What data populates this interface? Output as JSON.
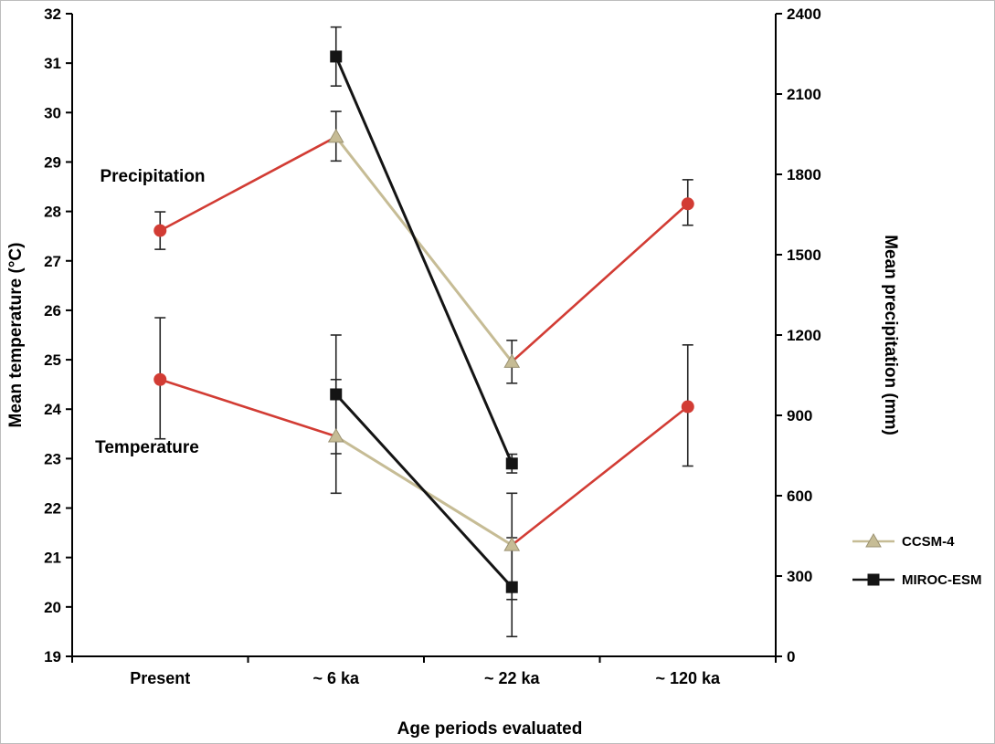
{
  "chart_data": {
    "type": "line",
    "xlabel": "Age periods evaluated",
    "categories": [
      "Present",
      "~ 6 ka",
      "~ 22 ka",
      "~ 120 ka"
    ],
    "left_axis": {
      "label": "Mean temperature (°C)",
      "min": 19,
      "max": 32,
      "ticks": [
        19,
        20,
        21,
        22,
        23,
        24,
        25,
        26,
        27,
        28,
        29,
        30,
        31,
        32
      ]
    },
    "right_axis": {
      "label": "Mean precipitation (mm)",
      "min": 0,
      "max": 2400,
      "ticks": [
        0,
        300,
        600,
        900,
        1200,
        1500,
        1800,
        2100,
        2400
      ]
    },
    "annotations": {
      "precipitation": "Precipitation",
      "temperature": "Temperature"
    },
    "legend": [
      {
        "label": "CCSM-4",
        "marker": "triangle",
        "color_key": "ccsm4"
      },
      {
        "label": "MIROC-ESM",
        "marker": "square",
        "color_key": "miroc"
      }
    ],
    "colors": {
      "observed": "#d23c34",
      "ccsm4": "#c6bc95",
      "ccsm4_edge": "#9a9171",
      "miroc": "#141414",
      "error_bar": "#262626",
      "axis": "#000000"
    },
    "series": [
      {
        "id": "precipitation-observed",
        "group": "Precipitation",
        "axis": "right",
        "marker": "circle",
        "color_key": "observed",
        "points": [
          {
            "ci": 0,
            "v": 1590,
            "eu": 70,
            "el": 70
          },
          {
            "ci": 3,
            "v": 1690,
            "eu": 90,
            "el": 80
          }
        ],
        "lines": [
          [
            {
              "ci": 0,
              "v": 1590
            },
            {
              "ci": 1,
              "v": 1940
            }
          ],
          [
            {
              "ci": 2,
              "v": 1100
            },
            {
              "ci": 3,
              "v": 1690
            }
          ]
        ]
      },
      {
        "id": "precipitation-ccsm4",
        "group": "Precipitation",
        "axis": "right",
        "marker": "triangle",
        "color_key": "ccsm4",
        "points": [
          {
            "ci": 1,
            "v": 1940,
            "eu": 95,
            "el": 90
          },
          {
            "ci": 2,
            "v": 1100,
            "eu": 80,
            "el": 80
          }
        ],
        "lines": [
          [
            {
              "ci": 1,
              "v": 1940
            },
            {
              "ci": 2,
              "v": 1100
            }
          ]
        ]
      },
      {
        "id": "precipitation-miroc-esm",
        "group": "Precipitation",
        "axis": "right",
        "marker": "square",
        "color_key": "miroc",
        "points": [
          {
            "ci": 1,
            "v": 2240,
            "eu": 110,
            "el": 110
          },
          {
            "ci": 2,
            "v": 720,
            "eu": 35,
            "el": 35
          }
        ],
        "lines": [
          [
            {
              "ci": 1,
              "v": 2240
            },
            {
              "ci": 2,
              "v": 720
            }
          ]
        ]
      },
      {
        "id": "temperature-observed",
        "group": "Temperature",
        "axis": "left",
        "marker": "circle",
        "color_key": "observed",
        "points": [
          {
            "ci": 0,
            "v": 24.6,
            "eu": 1.25,
            "el": 1.2
          },
          {
            "ci": 3,
            "v": 24.05,
            "eu": 1.25,
            "el": 1.2
          }
        ],
        "lines": [
          [
            {
              "ci": 0,
              "v": 24.6
            },
            {
              "ci": 1,
              "v": 23.45
            }
          ],
          [
            {
              "ci": 2,
              "v": 21.25
            },
            {
              "ci": 3,
              "v": 24.05
            }
          ]
        ]
      },
      {
        "id": "temperature-ccsm4",
        "group": "Temperature",
        "axis": "left",
        "marker": "triangle",
        "color_key": "ccsm4",
        "points": [
          {
            "ci": 1,
            "v": 23.45,
            "eu": 1.15,
            "el": 1.15
          },
          {
            "ci": 2,
            "v": 21.25,
            "eu": 1.05,
            "el": 1.1
          }
        ],
        "lines": [
          [
            {
              "ci": 1,
              "v": 23.45
            },
            {
              "ci": 2,
              "v": 21.25
            }
          ]
        ]
      },
      {
        "id": "temperature-miroc-esm",
        "group": "Temperature",
        "axis": "left",
        "marker": "square",
        "color_key": "miroc",
        "points": [
          {
            "ci": 1,
            "v": 24.3,
            "eu": 1.2,
            "el": 1.2
          },
          {
            "ci": 2,
            "v": 20.4,
            "eu": 1.0,
            "el": 1.0
          }
        ],
        "lines": [
          [
            {
              "ci": 1,
              "v": 24.3
            },
            {
              "ci": 2,
              "v": 20.4
            }
          ]
        ]
      }
    ]
  }
}
